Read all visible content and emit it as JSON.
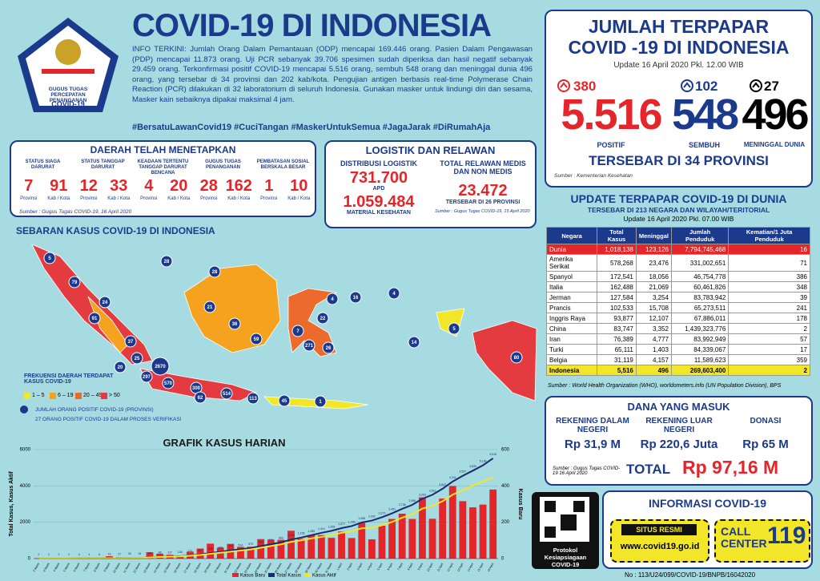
{
  "header": {
    "title": "COVID-19 DI INDONESIA",
    "logo_text": "GUGUS TUGAS PERCEPATAN PENANGANAN",
    "logo_sub": "COVID-19",
    "info": "INFO TERKINI: Jumlah Orang Dalam Pemantauan (ODP) mencapai 169.446 orang. Pasien Dalam Pengawasan (PDP) mencapai 11.873 orang. Uji PCR sebanyak 39.706 spesimen sudah diperiksa dan hasil negatif sebanyak 29.459 orang. Terkonfirmasi positif COVID-19 mencapai 5.516 orang, sembuh 548 orang dan meninggal dunia 496 orang, yang tersebar di 34 provinsi dan 202 kab/kota. Pengujian antigen berbasis real-time Polymerase Chain Reaction (PCR) dilakukan di 32 laboratorium di seluruh Indonesia. Gunakan masker untuk lindungi diri dan sesama, Masker kain sebaiknya dipakai maksimal 4 jam.",
    "hashtags": "#BersatuLawanCovid19  #CuciTangan  #MaskerUntukSemua  #JagaJarak  #DiRumahAja"
  },
  "daerah": {
    "title": "DAERAH TELAH MENETAPKAN",
    "prov_label": "Provinsi",
    "kab_label": "Kab / Kota",
    "source": "Sumber : Gugus Tugas COVID-19, 16 April 2020",
    "items": [
      {
        "label": "STATUS SIAGA DARURAT",
        "prov": 7,
        "kab": 91
      },
      {
        "label": "STATUS TANGGAP DARURAT",
        "prov": 12,
        "kab": 33
      },
      {
        "label": "KEADAAN TERTENTU TANGGAP DARURAT BENCANA",
        "prov": 4,
        "kab": 20
      },
      {
        "label": "GUGUS TUGAS PENANGANAN",
        "prov": 28,
        "kab": 162
      },
      {
        "label": "PEMBATASAN SOSIAL BERSKALA BESAR",
        "prov": 1,
        "kab": 10
      }
    ]
  },
  "logistik": {
    "title": "LOGISTIK DAN RELAWAN",
    "distribusi": "DISTRIBUSI LOGISTIK",
    "apd": "731.700",
    "apd_label": "APD",
    "material": "1.059.484",
    "material_label": "MATERIAL KESEHATAN",
    "relawan_label": "TOTAL RELAWAN MEDIS DAN NON MEDIS",
    "relawan": "23.472",
    "relawan_sub": "TERSEBAR DI 26 PROVINSI",
    "source": "Sumber : Gugus Tugas COVID-19, 15 April 2020"
  },
  "map": {
    "title": "SEBARAN KASUS COVID-19 DI INDONESIA",
    "legend_title": "FREKUENSI DAERAH TERDAPAT KASUS COVID-19",
    "legend": [
      {
        "label": "1 – 5",
        "color": "#f2e629"
      },
      {
        "label": "6 – 19",
        "color": "#f5a21f"
      },
      {
        "label": "20 – 49",
        "color": "#ec6a2c"
      },
      {
        "label": "> 50",
        "color": "#e33b3f"
      }
    ],
    "bubble_note": "JUMLAH ORANG POSITIF COVID-19 (PROVINSI)",
    "verif_note": "27 ORANG POSITIF COVID-19 DALAM PROSES VERIFIKASI",
    "counts": [
      5,
      79,
      28,
      24,
      28,
      91,
      37,
      25,
      20,
      2670,
      297,
      570,
      300,
      62,
      514,
      113,
      45,
      1,
      21,
      36,
      59,
      22,
      7,
      271,
      26,
      4,
      16,
      4,
      5,
      14,
      80
    ]
  },
  "jumlah": {
    "title1": "JUMLAH TERPAPAR",
    "title2": "COVID -19 DI INDONESIA",
    "update": "Update 16 April 2020 Pkl. 12.00 WIB",
    "positif": {
      "delta": 380,
      "value": "5.516",
      "label": "POSITIF"
    },
    "sembuh": {
      "delta": 102,
      "value": "548",
      "label": "SEMBUH"
    },
    "meninggal": {
      "delta": 27,
      "value": "496",
      "label": "MENINGGAL DUNIA"
    },
    "tersebar": "TERSEBAR DI 34 PROVINSI",
    "source": "Sumber : Kementerian Kesehatan"
  },
  "dunia": {
    "title": "UPDATE TERPAPAR COVID-19 DI DUNIA",
    "subtitle": "TERSEBAR DI 213 NEGARA DAN WILAYAH/TERITORIAL",
    "update": "Update 16 April 2020 Pkl. 07.00 WIB",
    "headers": [
      "Negara",
      "Total Kasus",
      "Meninggal",
      "Jumlah Penduduk",
      "Kematian/1 Juta Penduduk"
    ],
    "rows": [
      [
        "Dunia",
        "1,018,138",
        "123,126",
        "7,794,745,468",
        "16"
      ],
      [
        "Amerika Serikat",
        "578,268",
        "23,476",
        "331,002,651",
        "71"
      ],
      [
        "Spanyol",
        "172,541",
        "18,056",
        "46,754,778",
        "386"
      ],
      [
        "Italia",
        "162,488",
        "21,069",
        "60,461,826",
        "348"
      ],
      [
        "Jerman",
        "127,584",
        "3,254",
        "83,783,942",
        "39"
      ],
      [
        "Prancis",
        "102,533",
        "15,708",
        "65,273,511",
        "241"
      ],
      [
        "Inggris Raya",
        "93,877",
        "12,107",
        "67,886,011",
        "178"
      ],
      [
        "China",
        "83,747",
        "3,352",
        "1,439,323,776",
        "2"
      ],
      [
        "Iran",
        "76,389",
        "4,777",
        "83,992,949",
        "57"
      ],
      [
        "Turki",
        "65,111",
        "1,403",
        "84,339,067",
        "17"
      ],
      [
        "Belgia",
        "31,119",
        "4,157",
        "11,589,623",
        "359"
      ],
      [
        "Indonesia",
        "5,516",
        "496",
        "269,603,400",
        "2"
      ]
    ],
    "source": "Sumber : World Health Organization (WHO), worldometers.info (UN Population Division), BPS"
  },
  "dana": {
    "title": "DANA YANG MASUK",
    "items": [
      {
        "label": "REKENING DALAM NEGERI",
        "value": "Rp 31,9 M"
      },
      {
        "label": "REKENING LUAR NEGERI",
        "value": "Rp 220,6 Juta"
      },
      {
        "label": "DONASI",
        "value": "Rp 65 M"
      }
    ],
    "total_label": "TOTAL",
    "total": "Rp 97,16 M",
    "source": "Sumber : Gugus Tugas COVID-19 16 April 2020"
  },
  "informasi": {
    "title": "INFORMASI COVID-19",
    "situs": "SITUS RESMI",
    "url": "www.covid19.go.id",
    "call": "CALL CENTER",
    "number": "119",
    "protokol": "Protokol Kesiapsiagaan COVID-19"
  },
  "footer": "No : 113/U24/099/COVID-19/BNPB/16042020",
  "chart_data": {
    "type": "bar",
    "title": "GRAFIK KASUS HARIAN",
    "ylabel": "Total Kasus, Kasus Aktif",
    "y2label": "Kasus Baru",
    "categories": [
      "2 Maret",
      "3 Maret",
      "4 Maret",
      "5 Maret",
      "6 Maret",
      "7 Maret",
      "8 Maret",
      "9 Maret",
      "10 Maret",
      "11 Maret",
      "12 Maret",
      "13 Maret",
      "14 Maret",
      "15 Maret",
      "16 Maret",
      "17 Maret",
      "18 Maret",
      "19 Maret",
      "20 Maret",
      "21 Maret",
      "22 Maret",
      "23 Maret",
      "24 Maret",
      "25 Maret",
      "26 Maret",
      "27 Maret",
      "28 Maret",
      "29 Maret",
      "30 Maret",
      "31 Maret",
      "1 April",
      "2 April",
      "3 April",
      "4 April",
      "5 April",
      "6 April",
      "7 April",
      "8 April",
      "9 April",
      "10 April",
      "11 April",
      "12 April",
      "13 April",
      "14 April",
      "15 April",
      "16 April"
    ],
    "series": [
      {
        "name": "Kasus Baru",
        "color": "#e4262b",
        "axis": "y2",
        "values": [
          2,
          0,
          0,
          0,
          2,
          0,
          2,
          13,
          8,
          7,
          0,
          35,
          27,
          21,
          17,
          38,
          55,
          82,
          60,
          81,
          64,
          65,
          107,
          104,
          103,
          153,
          109,
          130,
          129,
          114,
          149,
          113,
          196,
          106,
          181,
          218,
          247,
          218,
          337,
          219,
          330,
          399,
          316,
          282,
          297,
          380
        ]
      },
      {
        "name": "Total Kasus",
        "color": "#1c2a6e",
        "values": [
          2,
          2,
          2,
          2,
          4,
          4,
          6,
          19,
          27,
          34,
          34,
          69,
          96,
          117,
          134,
          172,
          227,
          309,
          369,
          450,
          514,
          579,
          686,
          790,
          893,
          1046,
          1155,
          1285,
          1414,
          1528,
          1677,
          1790,
          1986,
          2092,
          2273,
          2491,
          2738,
          2956,
          3293,
          3512,
          3842,
          4241,
          4557,
          4839,
          5136,
          5516
        ],
        "value_labels": [
          "2",
          "2",
          "2",
          "2",
          "4",
          "4",
          "6",
          "19",
          "27",
          "34",
          "34",
          "69",
          "96",
          "117",
          "134",
          "172",
          "227",
          "309",
          "369",
          "450",
          "514",
          "579",
          "686",
          "790",
          "893",
          "1,046",
          "1,155",
          "1,285",
          "1,414",
          "1,528",
          "1,677",
          "1,790",
          "1,986",
          "2,092",
          "2,273",
          "2,491",
          "2,738",
          "2,956",
          "3,293",
          "3,512",
          "3,842",
          "4,241",
          "4,557",
          "4,839",
          "5,136",
          "5,516"
        ]
      },
      {
        "name": "Kasus Aktif",
        "color": "#f2e629",
        "values": [
          2,
          2,
          2,
          2,
          4,
          4,
          6,
          19,
          25,
          32,
          31,
          62,
          86,
          106,
          121,
          157,
          197,
          262,
          318,
          378,
          444,
          500,
          596,
          691,
          780,
          917,
          1005,
          1107,
          1188,
          1290,
          1417,
          1509,
          1667,
          1695,
          1833,
          2018,
          2250,
          2428,
          2753,
          2902,
          3153,
          3518,
          3753,
          4018,
          4239,
          4472
        ]
      }
    ],
    "ylim": [
      0,
      6000
    ],
    "yticks": [
      0,
      2000,
      4000,
      6000
    ],
    "y2lim": [
      0,
      600
    ],
    "y2ticks": [
      0,
      200,
      400,
      600
    ]
  }
}
